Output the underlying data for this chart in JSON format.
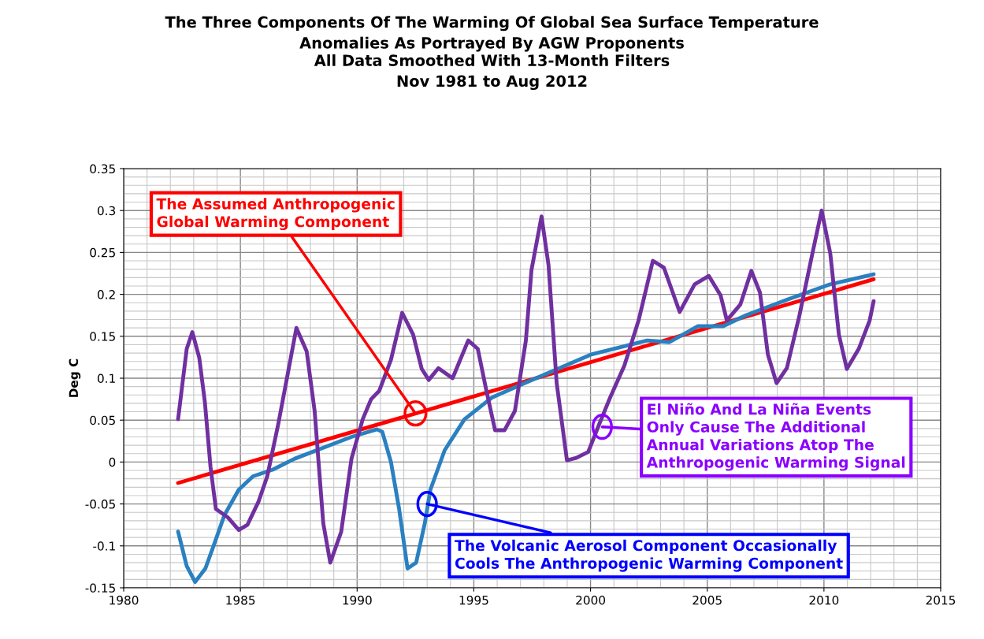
{
  "chart_data": {
    "type": "line",
    "title": "The Three Components Of The Warming Of Global Sea Surface Temperature\nAnomalies As Portrayed By AGW Proponents",
    "subtitle": "All Data Smoothed With 13-Month Filters\nNov 1981 to Aug 2012",
    "ylabel": "Deg C",
    "xlim": [
      1980,
      2015
    ],
    "xticks": [
      1980,
      1985,
      1990,
      1995,
      2000,
      2005,
      2010,
      2015
    ],
    "ylim": [
      -0.15,
      0.35
    ],
    "yticks": [
      -0.15,
      -0.1,
      -0.05,
      0,
      0.05,
      0.1,
      0.15,
      0.2,
      0.25,
      0.3,
      0.35
    ],
    "grid": true,
    "line_style": "solid",
    "series": [
      {
        "color": "#ff0000",
        "x": [
          1982.33,
          2012.13
        ],
        "values": [
          -0.025,
          0.218
        ]
      },
      {
        "color": "#2a80c0",
        "x": [
          1982.33,
          1982.7,
          1983.06,
          1983.5,
          1983.85,
          1984.32,
          1984.93,
          1985.54,
          1986.39,
          1987.33,
          1988.55,
          1989.76,
          1990.85,
          1991.08,
          1991.45,
          1991.8,
          1992.16,
          1992.53,
          1992.9,
          1993.14,
          1993.75,
          1994.6,
          1995.78,
          1997.0,
          1997.67,
          2000.0,
          2002.43,
          2003.38,
          2004.59,
          2005.68,
          2006.65,
          2008.45,
          2010.27,
          2012.13
        ],
        "values": [
          -0.083,
          -0.124,
          -0.143,
          -0.127,
          -0.1,
          -0.063,
          -0.033,
          -0.017,
          -0.009,
          0.004,
          0.017,
          0.03,
          0.039,
          0.036,
          0.0,
          -0.056,
          -0.127,
          -0.12,
          -0.073,
          -0.033,
          0.014,
          0.051,
          0.077,
          0.092,
          0.1,
          0.128,
          0.145,
          0.143,
          0.162,
          0.162,
          0.175,
          0.194,
          0.212,
          0.224
        ]
      },
      {
        "color": "#7030a0",
        "x": [
          1982.33,
          1982.7,
          1982.94,
          1983.24,
          1983.48,
          1983.72,
          1983.95,
          1984.46,
          1984.93,
          1985.3,
          1985.78,
          1986.15,
          1986.62,
          1987.0,
          1987.4,
          1987.84,
          1988.18,
          1988.55,
          1988.85,
          1989.32,
          1989.76,
          1990.24,
          1990.6,
          1990.95,
          1991.45,
          1991.93,
          1992.4,
          1992.77,
          1993.07,
          1993.48,
          1994.09,
          1994.76,
          1995.17,
          1995.54,
          1995.91,
          1996.32,
          1996.76,
          1997.23,
          1997.47,
          1997.9,
          1998.2,
          1998.55,
          1998.99,
          1999.39,
          1999.9,
          2000.37,
          2000.84,
          2001.45,
          2002.06,
          2002.67,
          2003.14,
          2003.82,
          2004.46,
          2005.07,
          2005.57,
          2005.84,
          2006.42,
          2006.89,
          2007.26,
          2007.6,
          2007.97,
          2008.41,
          2008.95,
          2009.53,
          2009.9,
          2010.27,
          2010.64,
          2010.98,
          2011.49,
          2011.96,
          2012.13
        ],
        "values": [
          0.051,
          0.135,
          0.155,
          0.124,
          0.071,
          -0.006,
          -0.056,
          -0.066,
          -0.081,
          -0.075,
          -0.047,
          -0.017,
          0.045,
          0.101,
          0.16,
          0.132,
          0.061,
          -0.073,
          -0.12,
          -0.083,
          0.004,
          0.051,
          0.075,
          0.085,
          0.122,
          0.178,
          0.152,
          0.111,
          0.098,
          0.112,
          0.1,
          0.145,
          0.135,
          0.085,
          0.038,
          0.038,
          0.061,
          0.145,
          0.229,
          0.293,
          0.235,
          0.094,
          0.002,
          0.005,
          0.012,
          0.045,
          0.077,
          0.115,
          0.169,
          0.24,
          0.232,
          0.179,
          0.212,
          0.222,
          0.199,
          0.169,
          0.188,
          0.228,
          0.202,
          0.128,
          0.094,
          0.112,
          0.175,
          0.252,
          0.3,
          0.249,
          0.152,
          0.111,
          0.135,
          0.169,
          0.192
        ]
      }
    ],
    "annotations": [
      {
        "text": "The Assumed Anthropogenic\nGlobal Warming Component",
        "x": 1992.5,
        "y": 0.058
      },
      {
        "text": "El Niño And La Niña Events\nOnly Cause The Additional\nAnnual Variations Atop The\nAnthropogenic Warming Signal",
        "x": 2000.5,
        "y": 0.042
      },
      {
        "text": "The Volcanic Aerosol Component Occasionally\nCools The Anthropogenic Warming Component",
        "x": 1993.0,
        "y": -0.05
      }
    ]
  }
}
